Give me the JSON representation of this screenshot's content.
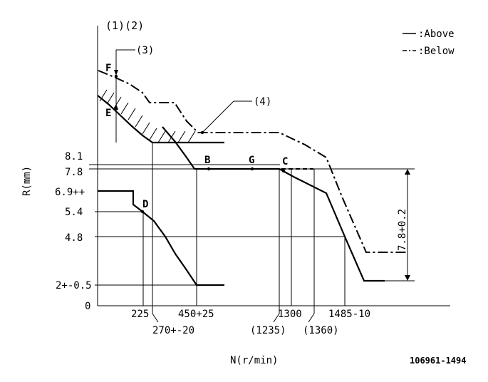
{
  "diagram": {
    "header_labels": "(1)(2)",
    "callout_3": "(3)",
    "callout_4": "(4)",
    "legend": {
      "above_symbol": "++",
      "above_text": ":Above",
      "below_symbol": "--",
      "below_text": ":Below"
    },
    "y_axis_title": "R(mm)",
    "x_axis_title": "N(r/min)",
    "y_ticks": {
      "t81": "8.1",
      "t78": "7.8",
      "t69": "6.9++",
      "t54": "5.4",
      "t48": "4.8",
      "t2": "2+-0.5",
      "t0": "0"
    },
    "x_ticks": {
      "t225": "225",
      "t270": "270+-20",
      "t450": "450+25",
      "t1235": "(1235)",
      "t1300": "1300",
      "t1360": "(1360)",
      "t1485": "1485-10"
    },
    "points": {
      "F": "F",
      "E": "E",
      "B": "B",
      "G": "G",
      "C": "C",
      "D": "D"
    },
    "dimension_label": "7.8+0.2",
    "drawing_number": "106961-1494"
  }
}
